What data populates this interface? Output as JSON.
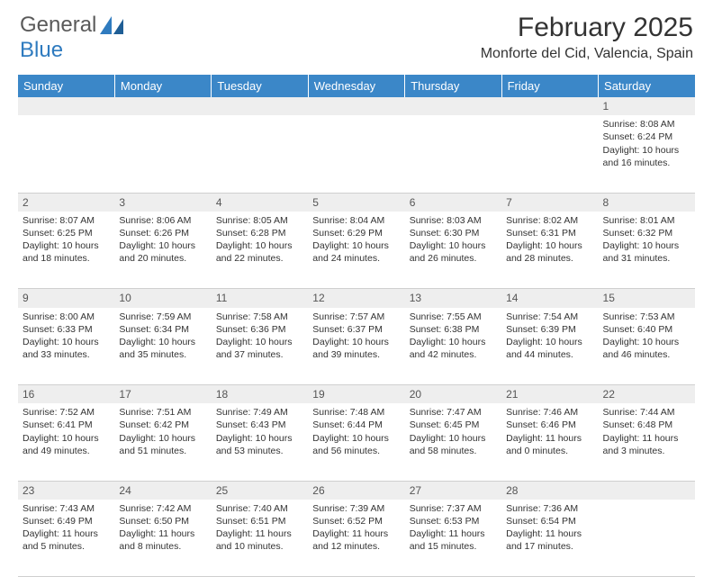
{
  "logo": {
    "text1": "General",
    "text2": "Blue"
  },
  "title": "February 2025",
  "subtitle": "Monforte del Cid, Valencia, Spain",
  "daynames": [
    "Sunday",
    "Monday",
    "Tuesday",
    "Wednesday",
    "Thursday",
    "Friday",
    "Saturday"
  ],
  "colors": {
    "header_bg": "#3b87c8",
    "header_fg": "#ffffff",
    "daynum_bg": "#eeeeee",
    "text": "#333333",
    "logo_gray": "#5a5a5a",
    "logo_blue": "#2f7bbf",
    "border": "#cfcfcf"
  },
  "weeks": [
    {
      "nums": [
        "",
        "",
        "",
        "",
        "",
        "",
        "1"
      ],
      "cells": [
        "",
        "",
        "",
        "",
        "",
        "",
        "Sunrise: 8:08 AM\nSunset: 6:24 PM\nDaylight: 10 hours and 16 minutes."
      ]
    },
    {
      "nums": [
        "2",
        "3",
        "4",
        "5",
        "6",
        "7",
        "8"
      ],
      "cells": [
        "Sunrise: 8:07 AM\nSunset: 6:25 PM\nDaylight: 10 hours and 18 minutes.",
        "Sunrise: 8:06 AM\nSunset: 6:26 PM\nDaylight: 10 hours and 20 minutes.",
        "Sunrise: 8:05 AM\nSunset: 6:28 PM\nDaylight: 10 hours and 22 minutes.",
        "Sunrise: 8:04 AM\nSunset: 6:29 PM\nDaylight: 10 hours and 24 minutes.",
        "Sunrise: 8:03 AM\nSunset: 6:30 PM\nDaylight: 10 hours and 26 minutes.",
        "Sunrise: 8:02 AM\nSunset: 6:31 PM\nDaylight: 10 hours and 28 minutes.",
        "Sunrise: 8:01 AM\nSunset: 6:32 PM\nDaylight: 10 hours and 31 minutes."
      ]
    },
    {
      "nums": [
        "9",
        "10",
        "11",
        "12",
        "13",
        "14",
        "15"
      ],
      "cells": [
        "Sunrise: 8:00 AM\nSunset: 6:33 PM\nDaylight: 10 hours and 33 minutes.",
        "Sunrise: 7:59 AM\nSunset: 6:34 PM\nDaylight: 10 hours and 35 minutes.",
        "Sunrise: 7:58 AM\nSunset: 6:36 PM\nDaylight: 10 hours and 37 minutes.",
        "Sunrise: 7:57 AM\nSunset: 6:37 PM\nDaylight: 10 hours and 39 minutes.",
        "Sunrise: 7:55 AM\nSunset: 6:38 PM\nDaylight: 10 hours and 42 minutes.",
        "Sunrise: 7:54 AM\nSunset: 6:39 PM\nDaylight: 10 hours and 44 minutes.",
        "Sunrise: 7:53 AM\nSunset: 6:40 PM\nDaylight: 10 hours and 46 minutes."
      ]
    },
    {
      "nums": [
        "16",
        "17",
        "18",
        "19",
        "20",
        "21",
        "22"
      ],
      "cells": [
        "Sunrise: 7:52 AM\nSunset: 6:41 PM\nDaylight: 10 hours and 49 minutes.",
        "Sunrise: 7:51 AM\nSunset: 6:42 PM\nDaylight: 10 hours and 51 minutes.",
        "Sunrise: 7:49 AM\nSunset: 6:43 PM\nDaylight: 10 hours and 53 minutes.",
        "Sunrise: 7:48 AM\nSunset: 6:44 PM\nDaylight: 10 hours and 56 minutes.",
        "Sunrise: 7:47 AM\nSunset: 6:45 PM\nDaylight: 10 hours and 58 minutes.",
        "Sunrise: 7:46 AM\nSunset: 6:46 PM\nDaylight: 11 hours and 0 minutes.",
        "Sunrise: 7:44 AM\nSunset: 6:48 PM\nDaylight: 11 hours and 3 minutes."
      ]
    },
    {
      "nums": [
        "23",
        "24",
        "25",
        "26",
        "27",
        "28",
        ""
      ],
      "cells": [
        "Sunrise: 7:43 AM\nSunset: 6:49 PM\nDaylight: 11 hours and 5 minutes.",
        "Sunrise: 7:42 AM\nSunset: 6:50 PM\nDaylight: 11 hours and 8 minutes.",
        "Sunrise: 7:40 AM\nSunset: 6:51 PM\nDaylight: 11 hours and 10 minutes.",
        "Sunrise: 7:39 AM\nSunset: 6:52 PM\nDaylight: 11 hours and 12 minutes.",
        "Sunrise: 7:37 AM\nSunset: 6:53 PM\nDaylight: 11 hours and 15 minutes.",
        "Sunrise: 7:36 AM\nSunset: 6:54 PM\nDaylight: 11 hours and 17 minutes.",
        ""
      ]
    }
  ]
}
